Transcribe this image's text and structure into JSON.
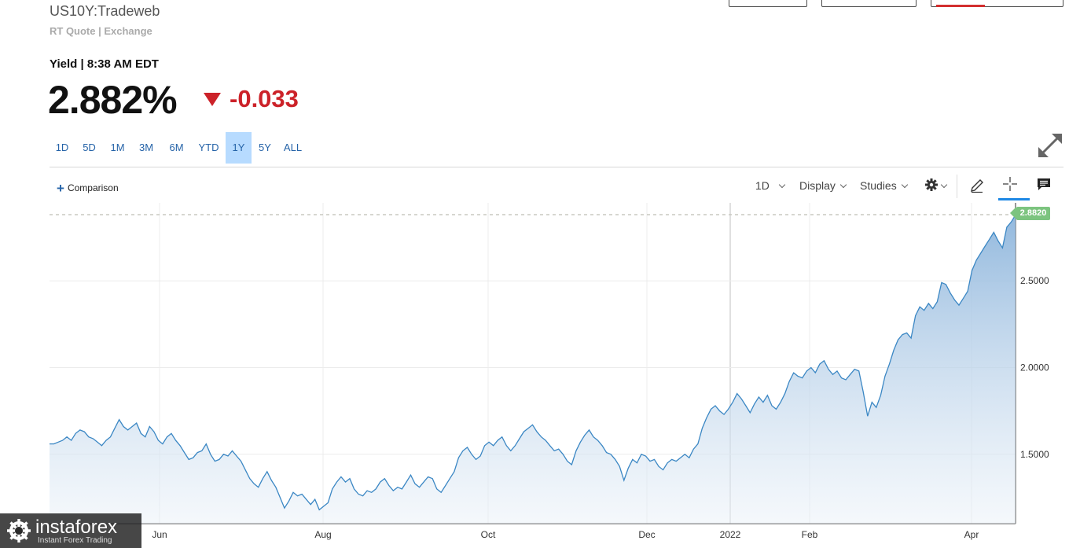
{
  "header": {
    "symbol": "US10Y:Tradeweb",
    "source": "RT Quote | Exchange",
    "yield_line": "Yield | 8:38 AM EDT",
    "price": "2.882%",
    "change": "-0.033",
    "change_color": "#cc2229"
  },
  "ranges": [
    {
      "label": "1D",
      "active": false
    },
    {
      "label": "5D",
      "active": false
    },
    {
      "label": "1M",
      "active": false
    },
    {
      "label": "3M",
      "active": false
    },
    {
      "label": "6M",
      "active": false
    },
    {
      "label": "YTD",
      "active": false
    },
    {
      "label": "1Y",
      "active": true
    },
    {
      "label": "5Y",
      "active": false
    },
    {
      "label": "ALL",
      "active": false
    }
  ],
  "toolbar": {
    "comparison_label": "Comparison",
    "interval_label": "1D",
    "display_label": "Display",
    "studies_label": "Studies",
    "settings_icon": "gear-icon",
    "draw_icon": "pencil-icon",
    "crosshair_icon": "crosshair-icon",
    "comment_icon": "comment-icon"
  },
  "watermark": {
    "name": "instaforex",
    "tagline": "Instant Forex Trading"
  },
  "chart_data": {
    "type": "area",
    "title": "",
    "xlabel": "",
    "ylabel": "",
    "x_ticks": [
      "Jun",
      "Aug",
      "Oct",
      "Dec",
      "2022",
      "Feb",
      "Apr"
    ],
    "y_ticks": [
      "1.5000",
      "2.0000",
      "2.5000"
    ],
    "ylim": [
      1.1,
      2.95
    ],
    "last_value": 2.882,
    "last_value_label": "2.8820",
    "grid": true,
    "line_color": "#3b87c4",
    "fill_color": "#a7c7e6",
    "series": [
      {
        "values": [
          1.56,
          1.56,
          1.57,
          1.58,
          1.6,
          1.58,
          1.62,
          1.64,
          1.63,
          1.6,
          1.59,
          1.57,
          1.55,
          1.58,
          1.6,
          1.65,
          1.7,
          1.66,
          1.64,
          1.66,
          1.68,
          1.62,
          1.6,
          1.66,
          1.63,
          1.58,
          1.56,
          1.6,
          1.62,
          1.58,
          1.55,
          1.51,
          1.47,
          1.48,
          1.51,
          1.52,
          1.56,
          1.5,
          1.46,
          1.47,
          1.5,
          1.49,
          1.52,
          1.49,
          1.46,
          1.41,
          1.36,
          1.33,
          1.31,
          1.36,
          1.4,
          1.35,
          1.31,
          1.25,
          1.19,
          1.23,
          1.28,
          1.26,
          1.27,
          1.24,
          1.21,
          1.24,
          1.18,
          1.2,
          1.22,
          1.3,
          1.34,
          1.37,
          1.34,
          1.36,
          1.3,
          1.27,
          1.26,
          1.29,
          1.28,
          1.3,
          1.34,
          1.36,
          1.32,
          1.29,
          1.31,
          1.3,
          1.34,
          1.38,
          1.33,
          1.31,
          1.34,
          1.37,
          1.36,
          1.3,
          1.28,
          1.32,
          1.36,
          1.4,
          1.48,
          1.52,
          1.54,
          1.5,
          1.47,
          1.49,
          1.55,
          1.57,
          1.55,
          1.58,
          1.6,
          1.55,
          1.52,
          1.55,
          1.59,
          1.63,
          1.65,
          1.67,
          1.63,
          1.6,
          1.58,
          1.55,
          1.52,
          1.53,
          1.5,
          1.46,
          1.44,
          1.52,
          1.57,
          1.61,
          1.64,
          1.6,
          1.58,
          1.55,
          1.51,
          1.5,
          1.47,
          1.43,
          1.35,
          1.42,
          1.47,
          1.45,
          1.5,
          1.49,
          1.46,
          1.47,
          1.43,
          1.41,
          1.45,
          1.47,
          1.46,
          1.48,
          1.5,
          1.48,
          1.53,
          1.56,
          1.65,
          1.71,
          1.76,
          1.78,
          1.75,
          1.73,
          1.76,
          1.8,
          1.85,
          1.82,
          1.78,
          1.74,
          1.79,
          1.83,
          1.8,
          1.84,
          1.78,
          1.76,
          1.8,
          1.85,
          1.92,
          1.97,
          1.95,
          1.94,
          1.98,
          2.0,
          1.97,
          2.02,
          2.04,
          1.99,
          1.96,
          1.98,
          1.94,
          1.93,
          1.96,
          1.99,
          1.98,
          1.86,
          1.72,
          1.8,
          1.77,
          1.84,
          1.95,
          2.02,
          2.1,
          2.16,
          2.19,
          2.2,
          2.17,
          2.3,
          2.35,
          2.33,
          2.37,
          2.34,
          2.38,
          2.49,
          2.48,
          2.43,
          2.39,
          2.36,
          2.4,
          2.44,
          2.56,
          2.62,
          2.66,
          2.7,
          2.74,
          2.78,
          2.73,
          2.69,
          2.81,
          2.84,
          2.88
        ]
      }
    ]
  }
}
